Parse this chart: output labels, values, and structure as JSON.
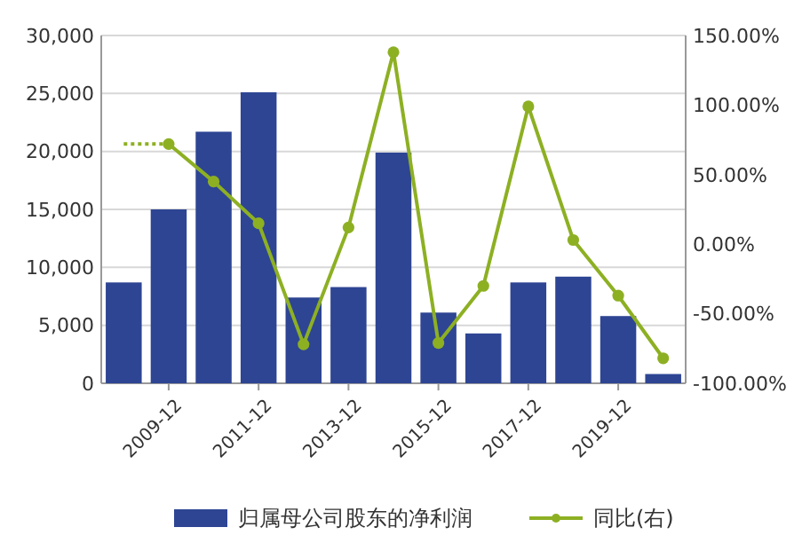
{
  "chart_data": {
    "type": "bar",
    "categories": [
      null,
      "2009-12",
      null,
      "2011-12",
      null,
      "2013-12",
      null,
      "2015-12",
      null,
      "2017-12",
      null,
      "2019-12",
      null
    ],
    "series": [
      {
        "name": "归属母公司股东的净利润",
        "color": "#2e4593",
        "values": [
          8700,
          15000,
          21700,
          25100,
          7400,
          8300,
          19900,
          6100,
          4300,
          8700,
          9200,
          5800,
          800
        ]
      },
      {
        "name": "同比(右)",
        "type": "line",
        "axis": "y2",
        "color": "#8db023",
        "marker": "circle",
        "line_style": "solid",
        "values": [
          null,
          72,
          45,
          15,
          -72,
          12,
          138,
          -71,
          -30,
          99,
          3,
          -37,
          -82
        ]
      },
      {
        "type": "line",
        "axis": "y2",
        "color": "#8db023",
        "line_style": "dotted",
        "values": [
          72,
          72,
          null,
          null,
          null,
          null,
          null,
          null,
          null,
          null,
          null,
          null,
          null
        ]
      }
    ],
    "ylim": [
      0,
      30000
    ],
    "yticks": [
      {
        "value": 0,
        "label": "0"
      },
      {
        "value": 5000,
        "label": "5,000"
      },
      {
        "value": 10000,
        "label": "10,000"
      },
      {
        "value": 15000,
        "label": "15,000"
      },
      {
        "value": 20000,
        "label": "20,000"
      },
      {
        "value": 25000,
        "label": "25,000"
      },
      {
        "value": 30000,
        "label": "30,000"
      }
    ],
    "y2lim": [
      -100,
      150
    ],
    "y2ticks": [
      {
        "value": -100,
        "label": "-100.00%"
      },
      {
        "value": -50,
        "label": "-50.00%"
      },
      {
        "value": 0,
        "label": "0.00%"
      },
      {
        "value": 50,
        "label": "50.00%"
      },
      {
        "value": 100,
        "label": "100.00%"
      },
      {
        "value": 150,
        "label": "150.00%"
      }
    ],
    "grid": "y",
    "legend": "bottom"
  }
}
